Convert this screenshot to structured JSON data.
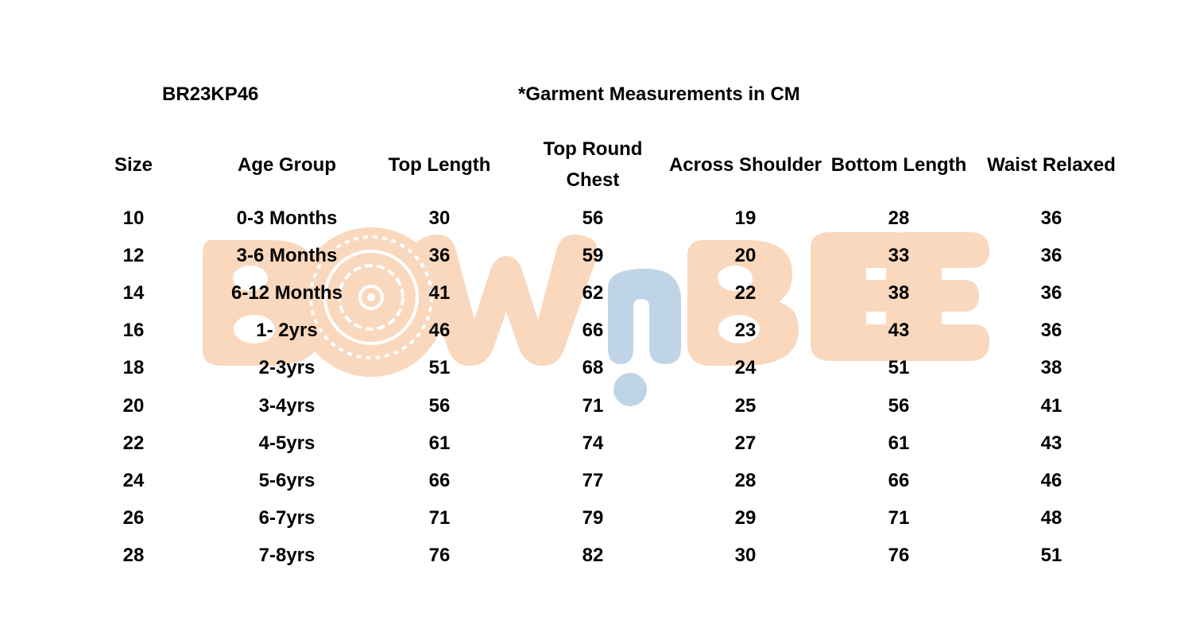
{
  "style_code": "BR23KP46",
  "note": "*Garment Measurements in CM",
  "watermark": {
    "brand": "BOWnBEE",
    "colors": {
      "peach": "#fad8bd",
      "blue": "#bfd4e7"
    }
  },
  "table": {
    "headers": [
      "Size",
      "Age Group",
      "Top Length",
      "Top Round\nChest",
      "Across Shoulder",
      "Bottom Length",
      "Waist Relaxed"
    ],
    "rows": [
      [
        "10",
        "0-3 Months",
        "30",
        "56",
        "19",
        "28",
        "36"
      ],
      [
        "12",
        "3-6 Months",
        "36",
        "59",
        "20",
        "33",
        "36"
      ],
      [
        "14",
        "6-12 Months",
        "41",
        "62",
        "22",
        "38",
        "36"
      ],
      [
        "16",
        "1- 2yrs",
        "46",
        "66",
        "23",
        "43",
        "36"
      ],
      [
        "18",
        "2-3yrs",
        "51",
        "68",
        "24",
        "51",
        "38"
      ],
      [
        "20",
        "3-4yrs",
        "56",
        "71",
        "25",
        "56",
        "41"
      ],
      [
        "22",
        "4-5yrs",
        "61",
        "74",
        "27",
        "61",
        "43"
      ],
      [
        "24",
        "5-6yrs",
        "66",
        "77",
        "28",
        "66",
        "46"
      ],
      [
        "26",
        "6-7yrs",
        "71",
        "79",
        "29",
        "71",
        "48"
      ],
      [
        "28",
        "7-8yrs",
        "76",
        "82",
        "30",
        "76",
        "51"
      ]
    ]
  }
}
